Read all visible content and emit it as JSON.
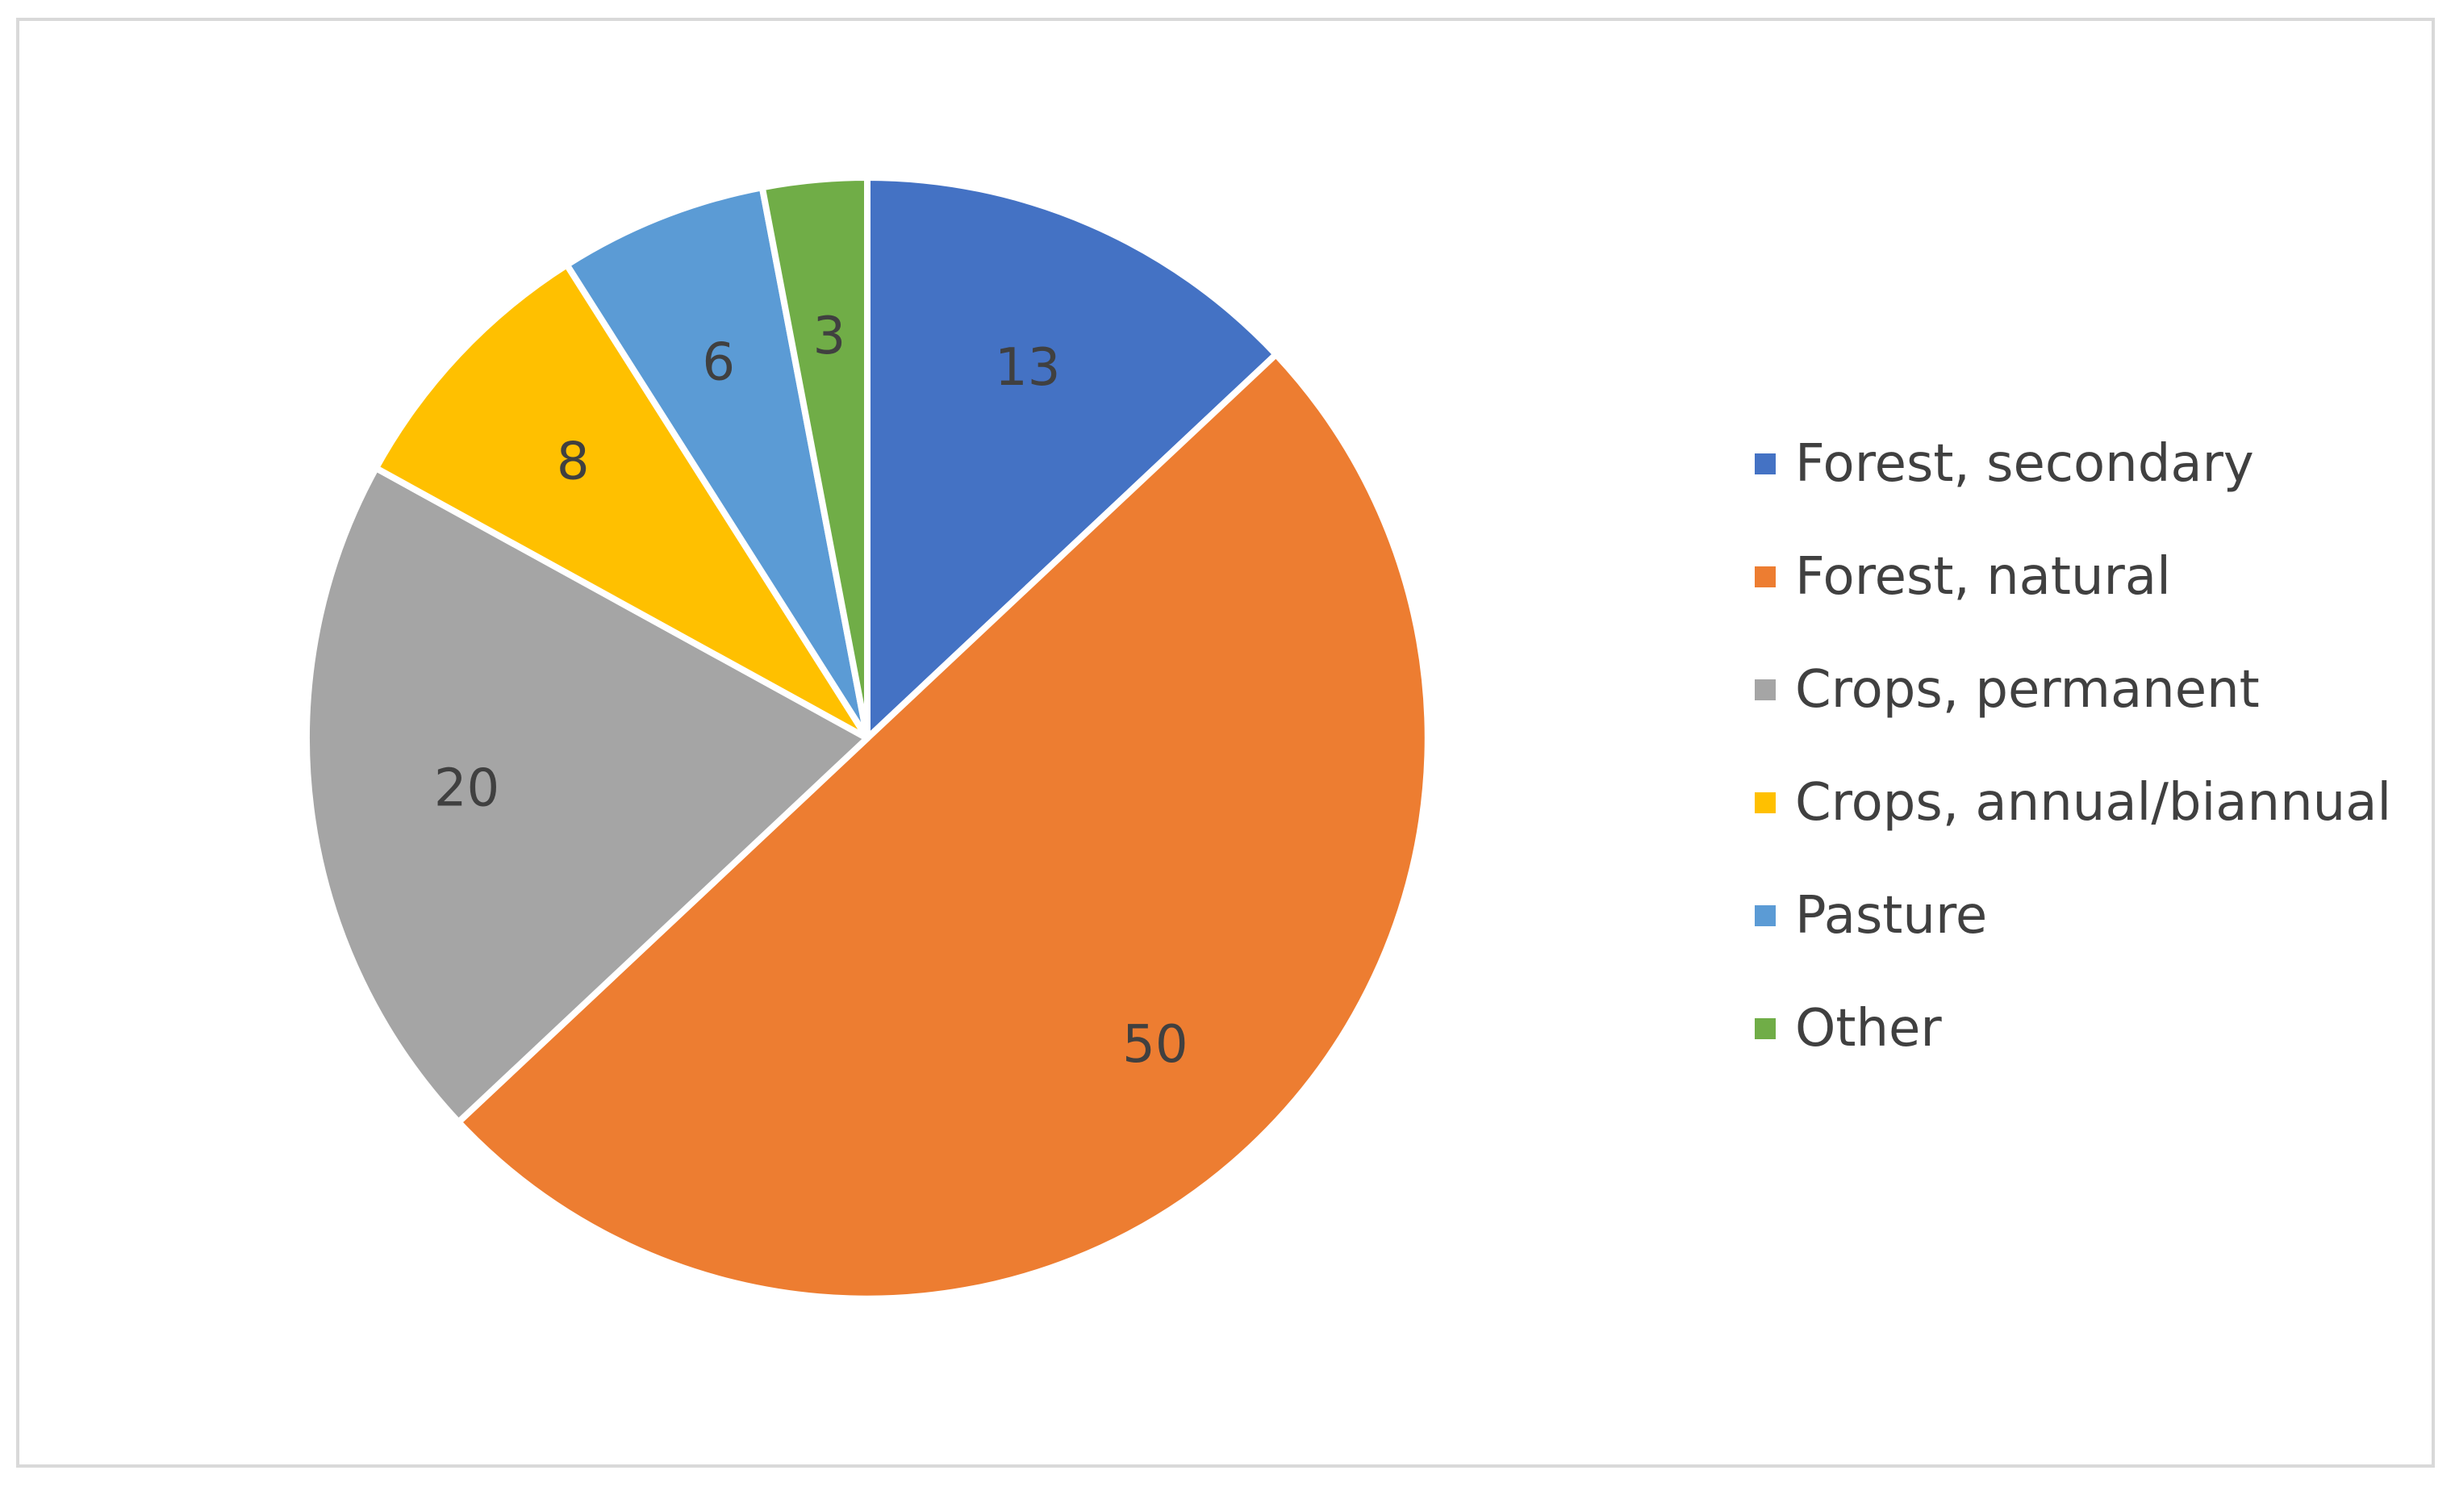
{
  "chart_data": {
    "type": "pie",
    "categories": [
      "Forest, secondary",
      "Forest, natural",
      "Crops, permanent",
      "Crops, annual/biannual",
      "Pasture",
      "Other"
    ],
    "values": [
      13,
      50,
      20,
      8,
      6,
      3
    ],
    "data_labels": [
      "13",
      "50",
      "20",
      "8",
      "6",
      "3"
    ],
    "colors": [
      "#4472C4",
      "#ED7D31",
      "#A5A5A5",
      "#FFC000",
      "#5B9BD5",
      "#70AD47"
    ],
    "start_angle_deg": 0,
    "direction": "clockwise",
    "legend_position": "right",
    "title": ""
  }
}
